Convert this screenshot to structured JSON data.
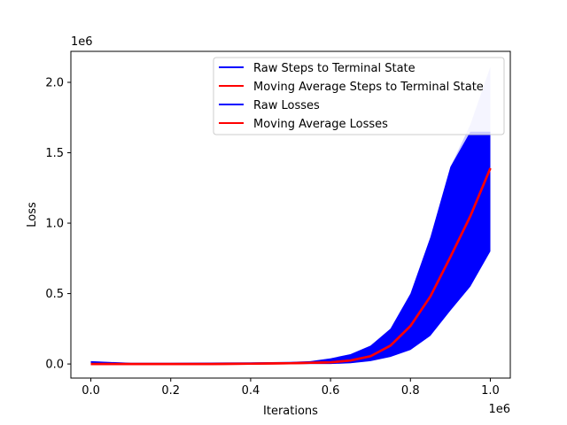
{
  "chart_data": {
    "type": "line",
    "xlabel": "Iterations",
    "ylabel": "Loss",
    "x_offset_label": "1e6",
    "y_offset_label": "1e6",
    "xlim": [
      -50000,
      1050000
    ],
    "ylim": [
      -100000,
      2220000
    ],
    "xticks": [
      0,
      200000,
      400000,
      600000,
      800000,
      1000000
    ],
    "xtick_labels": [
      "0.0",
      "0.2",
      "0.4",
      "0.6",
      "0.8",
      "1.0"
    ],
    "yticks": [
      0,
      500000,
      1000000,
      1500000,
      2000000
    ],
    "ytick_labels": [
      "0.0",
      "0.5",
      "1.0",
      "1.5",
      "2.0"
    ],
    "legend_position": "top-right",
    "grid": false,
    "series": [
      {
        "name": "Raw Steps to Terminal State",
        "color": "#0000ff",
        "alpha": 0.2,
        "x": [
          0,
          100000,
          200000,
          300000,
          400000,
          500000,
          550000,
          600000,
          650000,
          700000,
          750000,
          800000,
          850000,
          900000,
          950000,
          1000000
        ],
        "min": [
          0,
          0,
          0,
          0,
          0,
          0,
          0,
          0,
          5000,
          20000,
          50000,
          100000,
          200000,
          380000,
          550000,
          800000
        ],
        "max": [
          20000,
          8000,
          8000,
          10000,
          12000,
          15000,
          20000,
          40000,
          70000,
          130000,
          250000,
          500000,
          900000,
          1400000,
          1700000,
          2110000
        ]
      },
      {
        "name": "Moving Average Steps to Terminal State",
        "color": "#ff0000",
        "x": [
          0,
          100000,
          200000,
          300000,
          400000,
          500000,
          550000,
          600000,
          650000,
          700000,
          750000,
          800000,
          850000,
          900000,
          950000,
          1000000
        ],
        "y": [
          0,
          0,
          0,
          0,
          2000,
          5000,
          8000,
          12000,
          25000,
          55000,
          130000,
          270000,
          480000,
          760000,
          1050000,
          1390000
        ]
      },
      {
        "name": "Raw Losses",
        "color": "#0000ff",
        "x": [
          0,
          100000,
          200000,
          300000,
          400000,
          500000,
          550000,
          600000,
          650000,
          700000,
          750000,
          800000,
          850000,
          900000,
          950000,
          1000000
        ],
        "min": [
          0,
          0,
          0,
          0,
          0,
          0,
          0,
          0,
          5000,
          20000,
          50000,
          100000,
          200000,
          380000,
          550000,
          800000
        ],
        "max": [
          20000,
          8000,
          8000,
          10000,
          12000,
          15000,
          20000,
          40000,
          70000,
          130000,
          250000,
          500000,
          900000,
          1400000,
          1650000,
          1650000
        ]
      },
      {
        "name": "Moving Average Losses",
        "color": "#ff0000",
        "x": [
          0,
          100000,
          200000,
          300000,
          400000,
          500000,
          550000,
          600000,
          650000,
          700000,
          750000,
          800000,
          850000,
          900000,
          950000,
          1000000
        ],
        "y": [
          0,
          0,
          0,
          0,
          2000,
          5000,
          8000,
          12000,
          25000,
          55000,
          130000,
          270000,
          480000,
          760000,
          1050000,
          1390000
        ]
      }
    ]
  }
}
